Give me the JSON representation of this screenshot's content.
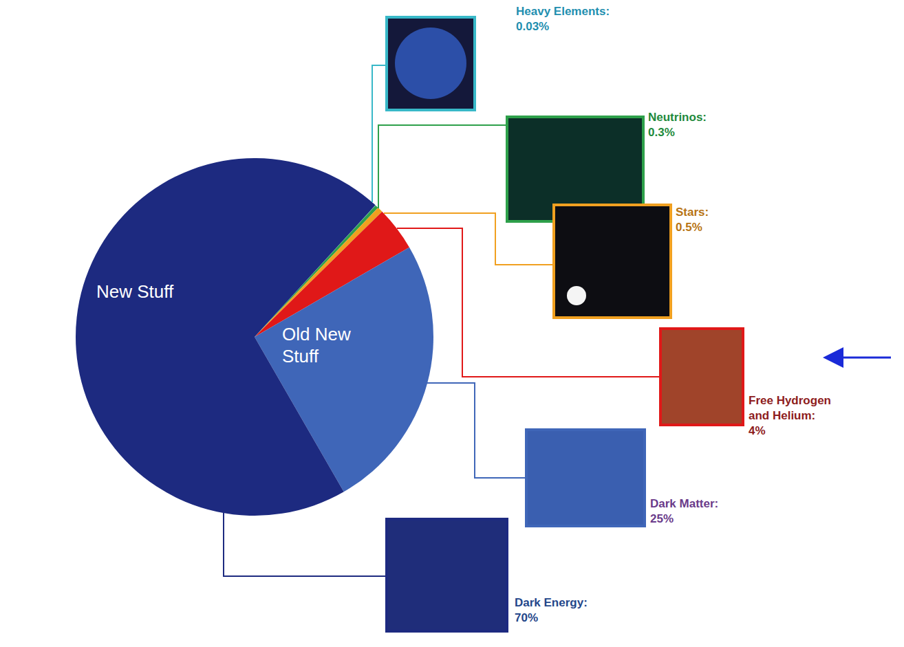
{
  "chart_data": {
    "type": "pie",
    "categories": [
      "Heavy Elements:",
      "Neutrinos:",
      "Stars:",
      "Free Hydrogen and Helium:",
      "Dark Matter:",
      "Dark Energy:"
    ],
    "values": [
      0.03,
      0.3,
      0.5,
      4,
      25,
      70
    ],
    "value_labels": [
      "0.03%",
      "0.3%",
      "0.5%",
      "4%",
      "25%",
      "70%"
    ],
    "colors": [
      "#38b8c8",
      "#2ea04a",
      "#f0a020",
      "#e01818",
      "#3f66b8",
      "#1d2a80"
    ],
    "data_labels": true,
    "annotations": [
      "New Stuff",
      "Old New Stuff"
    ]
  }
}
